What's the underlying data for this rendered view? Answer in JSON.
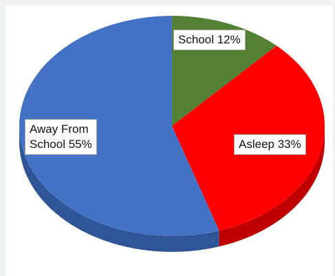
{
  "chart_data": {
    "type": "pie",
    "style": "3d",
    "slices": [
      {
        "label": "School",
        "value": 12,
        "color": "#548235",
        "side_color": "#3a5c25"
      },
      {
        "label": "Asleep",
        "value": 33,
        "color": "#ff0000",
        "side_color": "#c00000"
      },
      {
        "label": "Away From School",
        "value": 55,
        "color": "#4472c4",
        "side_color": "#2f5597"
      }
    ],
    "data_labels": [
      {
        "line1": "School 12%"
      },
      {
        "line1": "Asleep 33%"
      },
      {
        "line1": "Away From",
        "line2": "School 55%"
      }
    ],
    "legend": "none"
  }
}
